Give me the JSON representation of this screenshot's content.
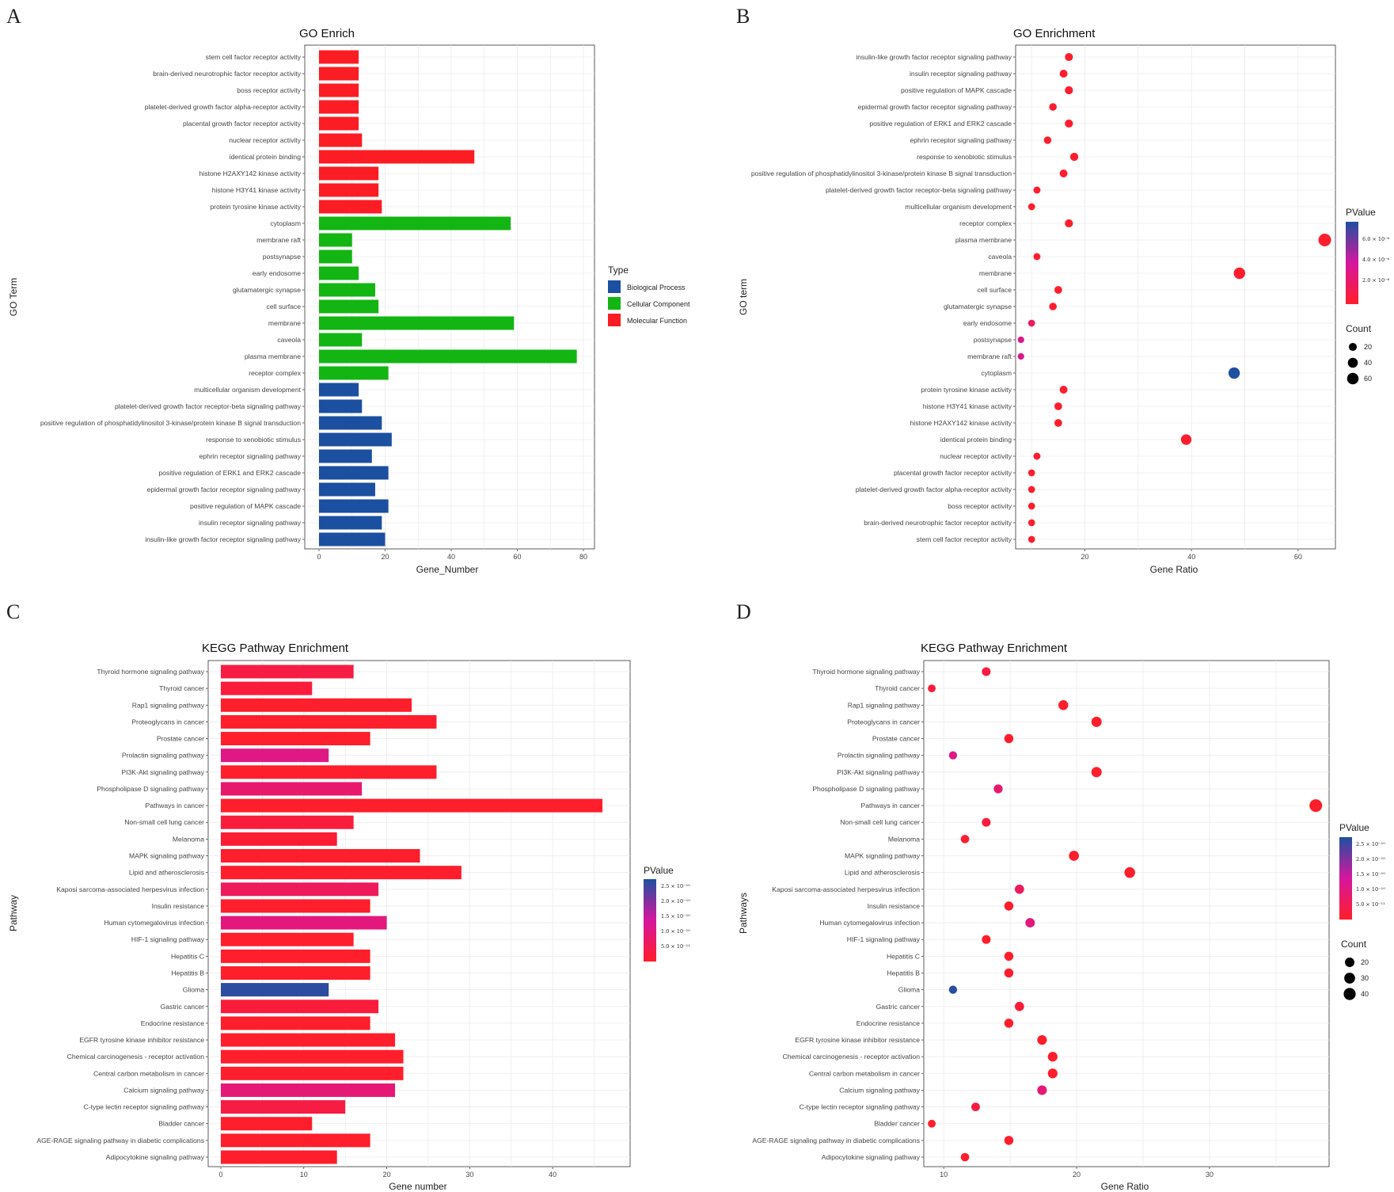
{
  "colors": {
    "biological_process": "#1b4fa0",
    "cellular_component": "#13b513",
    "molecular_function": "#fc1c23",
    "pvalue_high": "#1e50a0",
    "pvalue_mid": "#d6169e",
    "pvalue_low": "#ff1e2a"
  },
  "chart_data": [
    {
      "id": "A",
      "letter": "A",
      "type": "bar",
      "orientation": "horizontal",
      "title": "GO Enrich",
      "xlabel": "Gene_Number",
      "ylabel": "GO Term",
      "xlim": [
        0,
        80
      ],
      "xticks": [
        "0",
        "20",
        "40",
        "60",
        "80"
      ],
      "xtick_values": [
        0,
        20,
        40,
        60,
        80
      ],
      "legend": {
        "title": "Type",
        "position": "right",
        "items": [
          {
            "label": "Biological Process",
            "color": "#1b4fa0"
          },
          {
            "label": "Cellular Component",
            "color": "#13b513"
          },
          {
            "label": "Molecular Function",
            "color": "#fc1c23"
          }
        ]
      },
      "categories": [
        "stem cell factor receptor activity",
        "brain-derived neurotrophic factor receptor activity",
        "boss receptor activity",
        "platelet-derived growth factor alpha-receptor activity",
        "placental growth factor receptor activity",
        "nuclear receptor activity",
        "identical protein binding",
        "histone H2AXY142 kinase activity",
        "histone H3Y41 kinase activity",
        "protein tyrosine kinase activity",
        "cytoplasm",
        "membrane raft",
        "postsynapse",
        "early endosome",
        "glutamatergic synapse",
        "cell surface",
        "membrane",
        "caveola",
        "plasma membrane",
        "receptor complex",
        "multicellular organism development",
        "platelet-derived growth factor receptor-beta signaling pathway",
        "positive regulation of phosphatidylinositol 3-kinase/protein kinase B signal transduction",
        "response to xenobiotic stimulus",
        "ephrin receptor signaling pathway",
        "positive regulation of ERK1 and ERK2 cascade",
        "epidermal growth factor receptor signaling pathway",
        "positive regulation of MAPK cascade",
        "insulin receptor signaling pathway",
        "insulin-like growth factor receptor signaling pathway"
      ],
      "values": [
        12,
        12,
        12,
        12,
        12,
        13,
        47,
        18,
        18,
        19,
        58,
        10,
        10,
        12,
        17,
        18,
        59,
        13,
        78,
        21,
        12,
        13,
        19,
        22,
        16,
        21,
        17,
        21,
        19,
        20
      ],
      "types": [
        "MF",
        "MF",
        "MF",
        "MF",
        "MF",
        "MF",
        "MF",
        "MF",
        "MF",
        "MF",
        "CC",
        "CC",
        "CC",
        "CC",
        "CC",
        "CC",
        "CC",
        "CC",
        "CC",
        "CC",
        "BP",
        "BP",
        "BP",
        "BP",
        "BP",
        "BP",
        "BP",
        "BP",
        "BP",
        "BP"
      ]
    },
    {
      "id": "B",
      "letter": "B",
      "type": "scatter",
      "title": "GO Enrichment",
      "xlabel": "Gene Ratio",
      "ylabel": "GO term",
      "xlim": [
        7,
        67
      ],
      "xticks": [
        "20",
        "40",
        "60"
      ],
      "xtick_values": [
        20,
        40,
        60
      ],
      "color_legend": {
        "title": "PValue",
        "labels": [
          "6.0 × 10⁻⁶",
          "4.0 × 10⁻⁶",
          "2.0 × 10⁻⁶"
        ],
        "range": [
          0,
          7e-06
        ]
      },
      "size_legend": {
        "title": "Count",
        "labels": [
          "20",
          "40",
          "60"
        ],
        "values": [
          20,
          40,
          60
        ]
      },
      "categories": [
        "insulin-like growth factor receptor signaling pathway",
        "insulin receptor signaling pathway",
        "positive regulation of MAPK cascade",
        "epidermal growth factor receptor signaling pathway",
        "positive regulation of ERK1 and ERK2 cascade",
        "ephrin receptor signaling pathway",
        "response to xenobiotic stimulus",
        "positive regulation of phosphatidylinositol 3-kinase/protein kinase B signal transduction",
        "platelet-derived growth factor receptor-beta signaling pathway",
        "multicellular organism development",
        "receptor complex",
        "plasma membrane",
        "caveola",
        "membrane",
        "cell surface",
        "glutamatergic synapse",
        "early endosome",
        "postsynapse",
        "membrane raft",
        "cytoplasm",
        "protein tyrosine kinase activity",
        "histone H3Y41 kinase activity",
        "histone H2AXY142 kinase activity",
        "identical protein binding",
        "nuclear receptor activity",
        "placental growth factor receptor activity",
        "platelet-derived growth factor alpha-receptor activity",
        "boss receptor activity",
        "brain-derived neurotrophic factor receptor activity",
        "stem cell factor receptor activity"
      ],
      "x": [
        17,
        16,
        17,
        14,
        17,
        13,
        18,
        16,
        11,
        10,
        17,
        65,
        11,
        49,
        15,
        14,
        10,
        8,
        8,
        48,
        16,
        15,
        15,
        39,
        11,
        10,
        10,
        10,
        10,
        10
      ],
      "counts": [
        20,
        19,
        21,
        17,
        21,
        16,
        22,
        19,
        13,
        12,
        21,
        78,
        13,
        59,
        18,
        17,
        12,
        10,
        10,
        58,
        19,
        18,
        18,
        47,
        13,
        12,
        12,
        12,
        12,
        12
      ],
      "pvalues": [
        1e-07,
        1e-07,
        1e-07,
        1e-07,
        1e-07,
        1e-07,
        1e-07,
        1e-07,
        1e-07,
        1e-07,
        1e-07,
        1e-07,
        1e-07,
        1e-07,
        1e-07,
        1e-07,
        1.5e-06,
        3e-06,
        3e-06,
        7e-06,
        1e-07,
        1e-07,
        1e-07,
        1e-07,
        1e-07,
        1e-07,
        1e-07,
        1e-07,
        1e-07,
        1e-07
      ]
    },
    {
      "id": "C",
      "letter": "C",
      "type": "bar",
      "orientation": "horizontal",
      "title": "KEGG Pathway Enrichment",
      "xlabel": "Gene number",
      "ylabel": "Pathway",
      "xlim": [
        0,
        48
      ],
      "xticks": [
        "0",
        "10",
        "20",
        "30",
        "40"
      ],
      "xtick_values": [
        0,
        10,
        20,
        30,
        40
      ],
      "color_legend": {
        "title": "PValue",
        "labels": [
          "2.5 × 10⁻¹⁰",
          "2.0 × 10⁻¹⁰",
          "1.5 × 10⁻¹⁰",
          "1.0 × 10⁻¹⁰",
          "5.0 × 10⁻¹¹"
        ],
        "range": [
          0,
          2.8e-10
        ]
      },
      "categories": [
        "Thyroid hormone signaling pathway",
        "Thyroid cancer",
        "Rap1 signaling pathway",
        "Proteoglycans in cancer",
        "Prostate cancer",
        "Prolactin signaling pathway",
        "PI3K-Akt signaling pathway",
        "Phospholipase D signaling pathway",
        "Pathways in cancer",
        "Non-small cell lung cancer",
        "Melanoma",
        "MAPK signaling pathway",
        "Lipid and atherosclerosis",
        "Kaposi sarcoma-associated herpesvirus infection",
        "Insulin resistance",
        "Human cytomegalovirus infection",
        "HIF-1 signaling pathway",
        "Hepatitis C",
        "Hepatitis B",
        "Glioma",
        "Gastric cancer",
        "Endocrine resistance",
        "EGFR tyrosine kinase inhibitor resistance",
        "Chemical carcinogenesis - receptor activation",
        "Central carbon metabolism in cancer",
        "Calcium signaling pathway",
        "C-type lectin receptor signaling pathway",
        "Bladder cancer",
        "AGE-RAGE signaling pathway in diabetic complications",
        "Adipocytokine signaling pathway"
      ],
      "values": [
        16,
        11,
        23,
        26,
        18,
        13,
        26,
        17,
        46,
        16,
        14,
        24,
        29,
        19,
        18,
        20,
        16,
        18,
        18,
        13,
        19,
        18,
        21,
        22,
        22,
        21,
        15,
        11,
        18,
        14
      ],
      "pvalues": [
        3e-11,
        2e-11,
        1e-12,
        1e-12,
        1e-12,
        1.1e-10,
        1e-12,
        8e-11,
        1e-12,
        2e-11,
        1e-11,
        1e-12,
        1e-12,
        6e-11,
        1e-12,
        1e-10,
        1e-12,
        1e-12,
        1e-12,
        2.7e-10,
        2e-11,
        1e-12,
        1e-12,
        1e-12,
        1e-12,
        9e-11,
        3e-11,
        1e-12,
        1e-12,
        1e-12
      ]
    },
    {
      "id": "D",
      "letter": "D",
      "type": "scatter",
      "title": "KEGG Pathway Enrichment",
      "xlabel": "Gene Ratio",
      "ylabel": "Pathways",
      "xlim": [
        8.5,
        39
      ],
      "xticks": [
        "10",
        "20",
        "30"
      ],
      "xtick_values": [
        10,
        20,
        30
      ],
      "color_legend": {
        "title": "PValue",
        "labels": [
          "2.5 × 10⁻¹⁰",
          "2.0 × 10⁻¹⁰",
          "1.5 × 10⁻¹⁰",
          "1.0 × 10⁻¹⁰",
          "5.0 × 10⁻¹¹"
        ],
        "range": [
          0,
          2.8e-10
        ]
      },
      "size_legend": {
        "title": "Count",
        "labels": [
          "20",
          "30",
          "40"
        ],
        "values": [
          20,
          30,
          40
        ]
      },
      "categories": [
        "Thyroid hormone signaling pathway",
        "Thyroid cancer",
        "Rap1 signaling pathway",
        "Proteoglycans in cancer",
        "Prostate cancer",
        "Prolactin signaling pathway",
        "PI3K-Akt signaling pathway",
        "Phospholipase D signaling pathway",
        "Pathways in cancer",
        "Non-small cell lung cancer",
        "Melanoma",
        "MAPK signaling pathway",
        "Lipid and atherosclerosis",
        "Kaposi sarcoma-associated herpesvirus infection",
        "Insulin resistance",
        "Human cytomegalovirus infection",
        "HIF-1 signaling pathway",
        "Hepatitis C",
        "Hepatitis B",
        "Glioma",
        "Gastric cancer",
        "Endocrine resistance",
        "EGFR tyrosine kinase inhibitor resistance",
        "Chemical carcinogenesis - receptor activation",
        "Central carbon metabolism in cancer",
        "Calcium signaling pathway",
        "C-type lectin receptor signaling pathway",
        "Bladder cancer",
        "AGE-RAGE signaling pathway in diabetic complications",
        "Adipocytokine signaling pathway"
      ],
      "x": [
        13.2,
        9.1,
        19,
        21.5,
        14.9,
        10.7,
        21.5,
        14.1,
        38.0,
        13.2,
        11.6,
        19.8,
        24,
        15.7,
        14.9,
        16.5,
        13.2,
        14.9,
        14.9,
        10.7,
        15.7,
        14.9,
        17.4,
        18.2,
        18.2,
        17.4,
        12.4,
        9.1,
        14.9,
        11.6
      ],
      "counts": [
        16,
        11,
        23,
        26,
        18,
        13,
        26,
        17,
        46,
        16,
        14,
        24,
        29,
        19,
        18,
        20,
        16,
        18,
        18,
        13,
        19,
        18,
        21,
        22,
        22,
        21,
        15,
        11,
        18,
        14
      ],
      "pvalues": [
        3e-11,
        2e-11,
        1e-12,
        1e-12,
        1e-12,
        1.1e-10,
        1e-12,
        8e-11,
        1e-12,
        2e-11,
        1e-11,
        1e-12,
        1e-12,
        6e-11,
        1e-12,
        1e-10,
        1e-12,
        1e-12,
        1e-12,
        2.7e-10,
        2e-11,
        1e-12,
        1e-12,
        1e-12,
        1e-12,
        9e-11,
        3e-11,
        1e-12,
        1e-12,
        1e-12
      ]
    }
  ]
}
